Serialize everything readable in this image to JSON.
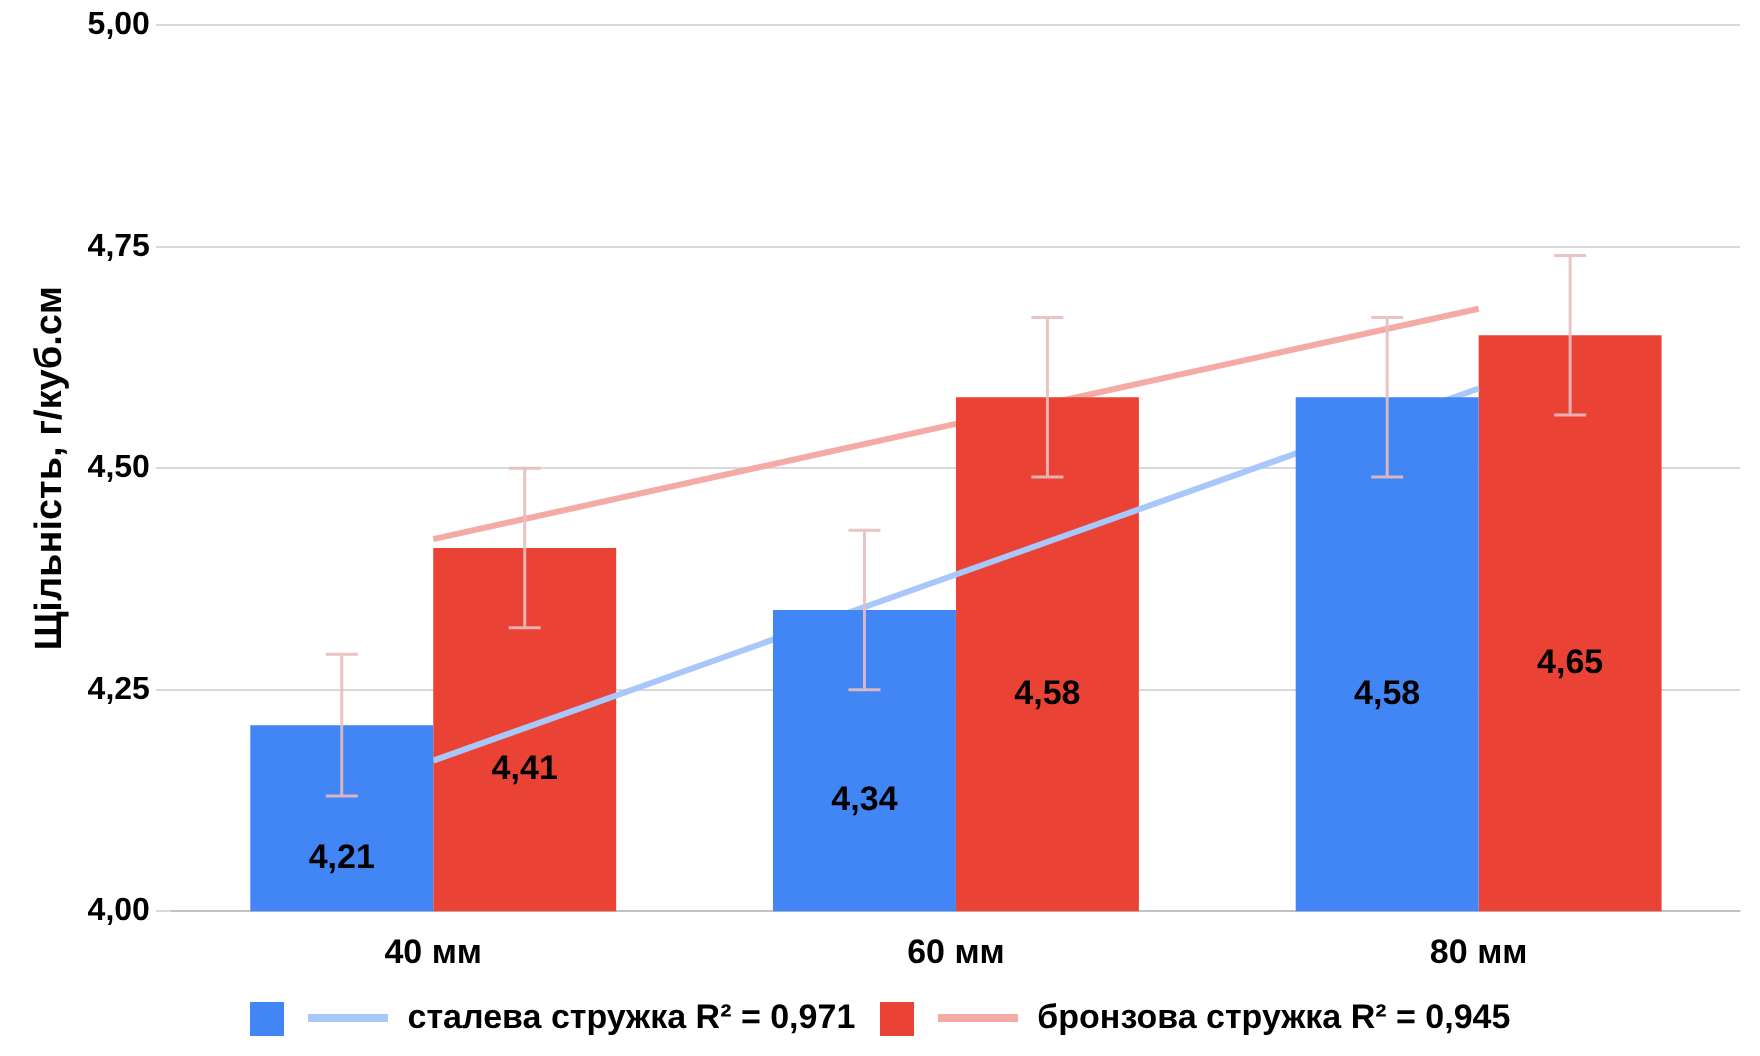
{
  "chart_data": {
    "type": "bar",
    "ylabel": "Щільність, г/куб.см",
    "categories": [
      "40 мм",
      "60 мм",
      "80 мм"
    ],
    "series": [
      {
        "color": "#4285f4",
        "values": [
          4.21,
          4.34,
          4.58
        ],
        "errors": [
          0.08,
          0.09,
          0.09
        ],
        "value_labels": [
          "4,21",
          "4,34",
          "4,58"
        ]
      },
      {
        "type": "line",
        "name": "сталева стружка R² = 0,971",
        "color": "#a8c7fa",
        "values": [
          4.17,
          4.38,
          4.59
        ]
      },
      {
        "color": "#ea4335",
        "values": [
          4.41,
          4.58,
          4.65
        ],
        "errors": [
          0.09,
          0.09,
          0.09
        ],
        "value_labels": [
          "4,41",
          "4,58",
          "4,65"
        ]
      },
      {
        "type": "line",
        "name": "бронзова стружка R² = 0,945",
        "color": "#f4aba5",
        "values": [
          4.42,
          4.55,
          4.68
        ]
      }
    ],
    "ylim": [
      4,
      5
    ],
    "yticks": [
      {
        "value": 4,
        "label": "4,00"
      },
      {
        "value": 4.25,
        "label": "4,25"
      },
      {
        "value": 4.5,
        "label": "4,50"
      },
      {
        "value": 4.75,
        "label": "4,75"
      },
      {
        "value": 5,
        "label": "5,00"
      }
    ],
    "grid": "y",
    "legend": "bottom",
    "marker": "none",
    "line_style": "solid"
  }
}
